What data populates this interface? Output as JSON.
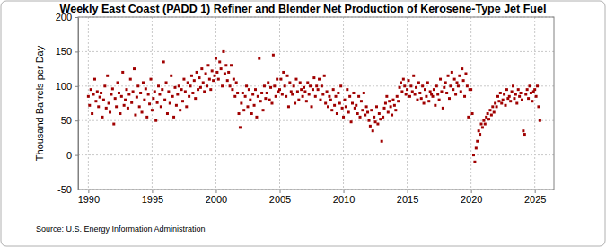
{
  "chart_data": {
    "type": "scatter",
    "title": "Weekly East Coast (PADD 1) Refiner and Blender Net Production of Kerosene-Type Jet Fuel",
    "y_label": "Thousand Barrels per Day",
    "source": "Source: U.S. Energy Information Administration",
    "color": "#a00000",
    "marker": "square",
    "grid": true,
    "xlim": [
      1989.2,
      2026.5
    ],
    "xticks": [
      1990,
      1995,
      2000,
      2005,
      2010,
      2015,
      2020,
      2025
    ],
    "ylim": [
      -50,
      200
    ],
    "yticks": [
      -50,
      0,
      50,
      100,
      150,
      200
    ],
    "x": [
      1990.0,
      1990.1,
      1990.2,
      1990.3,
      1990.4,
      1990.5,
      1990.6,
      1990.7,
      1990.8,
      1990.9,
      1991.0,
      1991.1,
      1991.2,
      1991.3,
      1991.4,
      1991.5,
      1991.6,
      1991.7,
      1991.8,
      1991.9,
      1992.0,
      1992.1,
      1992.2,
      1992.3,
      1992.4,
      1992.5,
      1992.6,
      1992.7,
      1992.8,
      1992.9,
      1993.0,
      1993.1,
      1993.2,
      1993.3,
      1993.4,
      1993.5,
      1993.6,
      1993.7,
      1993.8,
      1993.9,
      1994.0,
      1994.1,
      1994.2,
      1994.3,
      1994.4,
      1994.5,
      1994.6,
      1994.7,
      1994.8,
      1994.9,
      1995.0,
      1995.1,
      1995.2,
      1995.3,
      1995.4,
      1995.5,
      1995.6,
      1995.7,
      1995.8,
      1995.9,
      1996.0,
      1996.1,
      1996.2,
      1996.3,
      1996.4,
      1996.5,
      1996.6,
      1996.7,
      1996.8,
      1996.9,
      1997.0,
      1997.1,
      1997.2,
      1997.3,
      1997.4,
      1997.5,
      1997.6,
      1997.7,
      1997.8,
      1997.9,
      1998.0,
      1998.1,
      1998.2,
      1998.3,
      1998.4,
      1998.5,
      1998.6,
      1998.7,
      1998.8,
      1998.9,
      1999.0,
      1999.1,
      1999.2,
      1999.3,
      1999.4,
      1999.5,
      1999.6,
      1999.7,
      1999.8,
      1999.9,
      2000.0,
      2000.1,
      2000.2,
      2000.3,
      2000.4,
      2000.5,
      2000.6,
      2000.7,
      2000.8,
      2000.9,
      2001.0,
      2001.1,
      2001.2,
      2001.3,
      2001.4,
      2001.5,
      2001.6,
      2001.7,
      2001.8,
      2001.9,
      2002.0,
      2002.1,
      2002.2,
      2002.3,
      2002.4,
      2002.5,
      2002.6,
      2002.7,
      2002.8,
      2002.9,
      2003.0,
      2003.1,
      2003.2,
      2003.3,
      2003.4,
      2003.5,
      2003.6,
      2003.7,
      2003.8,
      2003.9,
      2004.0,
      2004.1,
      2004.2,
      2004.3,
      2004.4,
      2004.5,
      2004.6,
      2004.7,
      2004.8,
      2004.9,
      2005.0,
      2005.1,
      2005.2,
      2005.3,
      2005.4,
      2005.5,
      2005.6,
      2005.7,
      2005.8,
      2005.9,
      2006.0,
      2006.1,
      2006.2,
      2006.3,
      2006.4,
      2006.5,
      2006.6,
      2006.7,
      2006.8,
      2006.9,
      2007.0,
      2007.1,
      2007.2,
      2007.3,
      2007.4,
      2007.5,
      2007.6,
      2007.7,
      2007.8,
      2007.9,
      2008.0,
      2008.1,
      2008.2,
      2008.3,
      2008.4,
      2008.5,
      2008.6,
      2008.7,
      2008.8,
      2008.9,
      2009.0,
      2009.1,
      2009.2,
      2009.3,
      2009.4,
      2009.5,
      2009.6,
      2009.7,
      2009.8,
      2009.9,
      2010.0,
      2010.1,
      2010.2,
      2010.3,
      2010.4,
      2010.5,
      2010.6,
      2010.7,
      2010.8,
      2010.9,
      2011.0,
      2011.1,
      2011.2,
      2011.3,
      2011.4,
      2011.5,
      2011.6,
      2011.7,
      2011.8,
      2011.9,
      2012.0,
      2012.1,
      2012.2,
      2012.3,
      2012.4,
      2012.5,
      2012.6,
      2012.7,
      2012.8,
      2012.9,
      2013.0,
      2013.1,
      2013.2,
      2013.3,
      2013.4,
      2013.5,
      2013.6,
      2013.7,
      2013.8,
      2013.9,
      2014.0,
      2014.1,
      2014.2,
      2014.3,
      2014.4,
      2014.5,
      2014.6,
      2014.7,
      2014.8,
      2014.9,
      2015.0,
      2015.1,
      2015.2,
      2015.3,
      2015.4,
      2015.5,
      2015.6,
      2015.7,
      2015.8,
      2015.9,
      2016.0,
      2016.1,
      2016.2,
      2016.3,
      2016.4,
      2016.5,
      2016.6,
      2016.7,
      2016.8,
      2016.9,
      2017.0,
      2017.1,
      2017.2,
      2017.3,
      2017.4,
      2017.5,
      2017.6,
      2017.7,
      2017.8,
      2017.9,
      2018.0,
      2018.1,
      2018.2,
      2018.3,
      2018.4,
      2018.5,
      2018.6,
      2018.7,
      2018.8,
      2018.9,
      2019.0,
      2019.1,
      2019.2,
      2019.3,
      2019.4,
      2019.5,
      2019.6,
      2019.7,
      2019.8,
      2019.9,
      2020.0,
      2020.1,
      2020.2,
      2020.3,
      2020.4,
      2020.5,
      2020.6,
      2020.7,
      2020.8,
      2020.9,
      2021.0,
      2021.1,
      2021.2,
      2021.3,
      2021.4,
      2021.5,
      2021.6,
      2021.7,
      2021.8,
      2021.9,
      2022.0,
      2022.1,
      2022.2,
      2022.3,
      2022.4,
      2022.5,
      2022.6,
      2022.7,
      2022.8,
      2022.9,
      2023.0,
      2023.1,
      2023.2,
      2023.3,
      2023.4,
      2023.5,
      2023.6,
      2023.7,
      2023.8,
      2023.9,
      2024.0,
      2024.1,
      2024.2,
      2024.3,
      2024.4,
      2024.5,
      2024.6,
      2024.7,
      2024.8,
      2024.9,
      2025.0,
      2025.1,
      2025.2,
      2025.3,
      2025.4
    ],
    "values": [
      85,
      72,
      95,
      60,
      88,
      110,
      78,
      92,
      70,
      84,
      90,
      55,
      80,
      100,
      68,
      115,
      75,
      62,
      88,
      96,
      45,
      82,
      70,
      105,
      90,
      60,
      85,
      120,
      72,
      80,
      95,
      68,
      88,
      110,
      76,
      92,
      125,
      58,
      84,
      100,
      70,
      90,
      62,
      105,
      80,
      96,
      55,
      88,
      74,
      110,
      65,
      82,
      92,
      50,
      76,
      100,
      88,
      70,
      95,
      135,
      80,
      105,
      60,
      92,
      75,
      115,
      85,
      55,
      98,
      72,
      88,
      100,
      65,
      95,
      78,
      110,
      92,
      70,
      105,
      85,
      100,
      115,
      90,
      108,
      82,
      120,
      95,
      112,
      98,
      125,
      105,
      92,
      118,
      100,
      130,
      110,
      95,
      122,
      108,
      115,
      140,
      120,
      110,
      135,
      125,
      100,
      150,
      118,
      130,
      108,
      120,
      100,
      130,
      95,
      110,
      85,
      105,
      90,
      60,
      40,
      75,
      90,
      65,
      85,
      100,
      70,
      95,
      80,
      60,
      88,
      72,
      95,
      55,
      85,
      140,
      78,
      90,
      65,
      100,
      82,
      90,
      105,
      80,
      98,
      75,
      145,
      100,
      85,
      110,
      92,
      95,
      110,
      88,
      120,
      100,
      85,
      115,
      70,
      105,
      92,
      88,
      100,
      75,
      110,
      92,
      80,
      105,
      95,
      85,
      98,
      92,
      78,
      105,
      88,
      100,
      70,
      95,
      112,
      85,
      100,
      95,
      110,
      80,
      100,
      88,
      115,
      75,
      92,
      70,
      85,
      80,
      65,
      95,
      72,
      85,
      60,
      90,
      75,
      100,
      68,
      55,
      80,
      70,
      95,
      62,
      85,
      48,
      75,
      90,
      68,
      72,
      60,
      85,
      55,
      78,
      65,
      90,
      58,
      70,
      62,
      50,
      42,
      65,
      35,
      55,
      48,
      70,
      45,
      60,
      52,
      20,
      55,
      68,
      75,
      85,
      62,
      78,
      70,
      58,
      80,
      72,
      65,
      85,
      78,
      98,
      105,
      92,
      110,
      100,
      88,
      95,
      108,
      85,
      100,
      92,
      115,
      88,
      98,
      80,
      105,
      90,
      82,
      100,
      75,
      95,
      85,
      105,
      78,
      92,
      88,
      85,
      95,
      72,
      100,
      88,
      80,
      110,
      92,
      68,
      98,
      105,
      90,
      115,
      82,
      100,
      120,
      95,
      110,
      88,
      105,
      100,
      115,
      92,
      125,
      108,
      85,
      118,
      100,
      55,
      95,
      95,
      60,
      0,
      -10,
      10,
      20,
      35,
      30,
      45,
      40,
      50,
      45,
      55,
      60,
      52,
      65,
      58,
      70,
      62,
      75,
      70,
      85,
      78,
      90,
      75,
      80,
      88,
      72,
      95,
      82,
      85,
      78,
      92,
      100,
      82,
      88,
      75,
      95,
      85,
      90,
      80,
      35,
      30,
      88,
      95,
      82,
      100,
      90,
      78,
      92,
      95,
      85,
      100,
      70,
      50
    ]
  }
}
